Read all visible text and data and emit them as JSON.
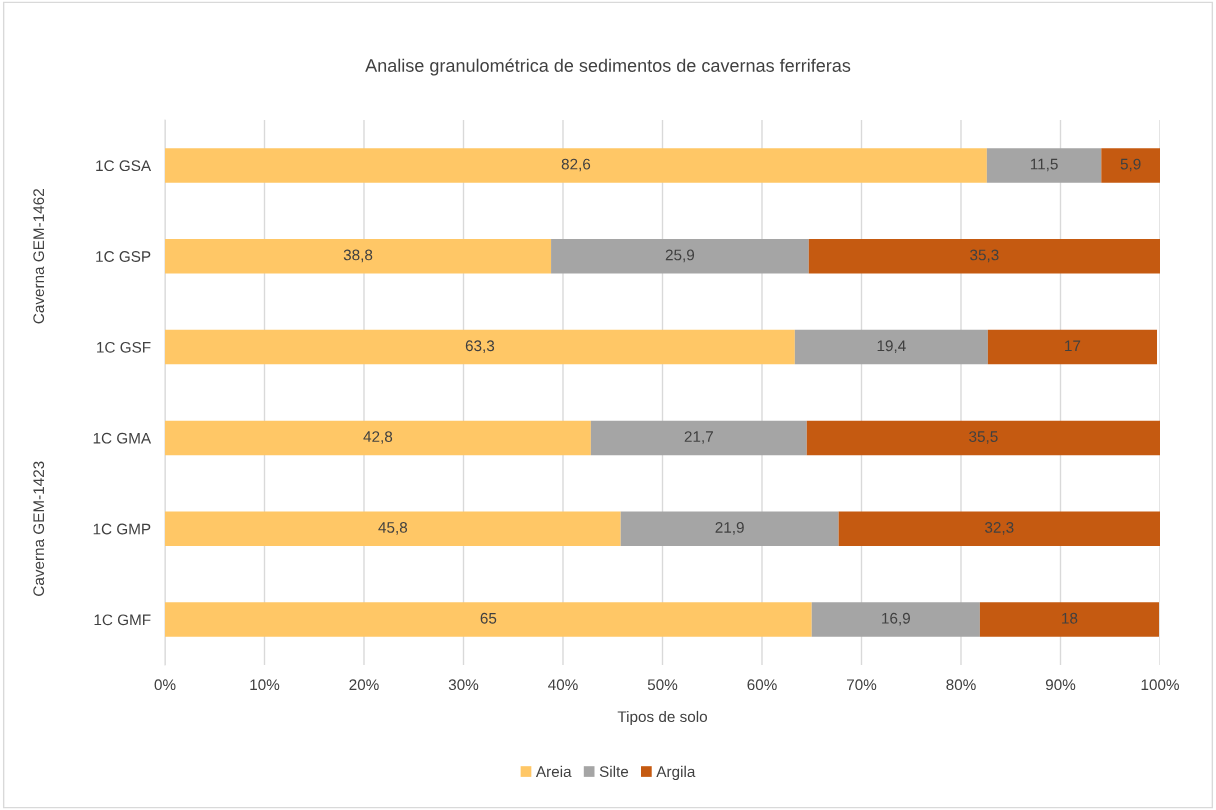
{
  "chart_data": {
    "type": "bar",
    "orientation": "horizontal",
    "stacked": true,
    "title": "Analise granulométrica de sedimentos de cavernas ferriferas",
    "xlabel": "Tipos de solo",
    "categories": [
      "1C GSA",
      "1C GSP",
      "1C GSF",
      "1C GMA",
      "1C GMP",
      "1C GMF"
    ],
    "series": [
      {
        "name": "Areia",
        "color": "#ffc766",
        "values": [
          82.6,
          38.8,
          63.3,
          42.8,
          45.8,
          65
        ],
        "value_labels": [
          "82,6",
          "38,8",
          "63,3",
          "42,8",
          "45,8",
          "65"
        ]
      },
      {
        "name": "Silte",
        "color": "#a5a5a5",
        "values": [
          11.5,
          25.9,
          19.4,
          21.7,
          21.9,
          16.9
        ],
        "value_labels": [
          "11,5",
          "25,9",
          "19,4",
          "21,7",
          "21,9",
          "16,9"
        ]
      },
      {
        "name": "Argila",
        "color": "#c55a11",
        "values": [
          5.9,
          35.3,
          17,
          35.5,
          32.3,
          18
        ],
        "value_labels": [
          "5,9",
          "35,3",
          "17",
          "35,5",
          "32,3",
          "18"
        ]
      }
    ],
    "xlim": [
      0,
      100
    ],
    "xticks": [
      {
        "value": 0,
        "label": "0%"
      },
      {
        "value": 10,
        "label": "10%"
      },
      {
        "value": 20,
        "label": "20%"
      },
      {
        "value": 30,
        "label": "30%"
      },
      {
        "value": 40,
        "label": "40%"
      },
      {
        "value": 50,
        "label": "50%"
      },
      {
        "value": 60,
        "label": "60%"
      },
      {
        "value": 70,
        "label": "70%"
      },
      {
        "value": 80,
        "label": "80%"
      },
      {
        "value": 90,
        "label": "90%"
      },
      {
        "value": 100,
        "label": "100%"
      }
    ],
    "annotations": [
      "Caverna GEM-1462",
      "Caverna GEM-1423"
    ],
    "grid": "x",
    "legend": "bottom"
  }
}
